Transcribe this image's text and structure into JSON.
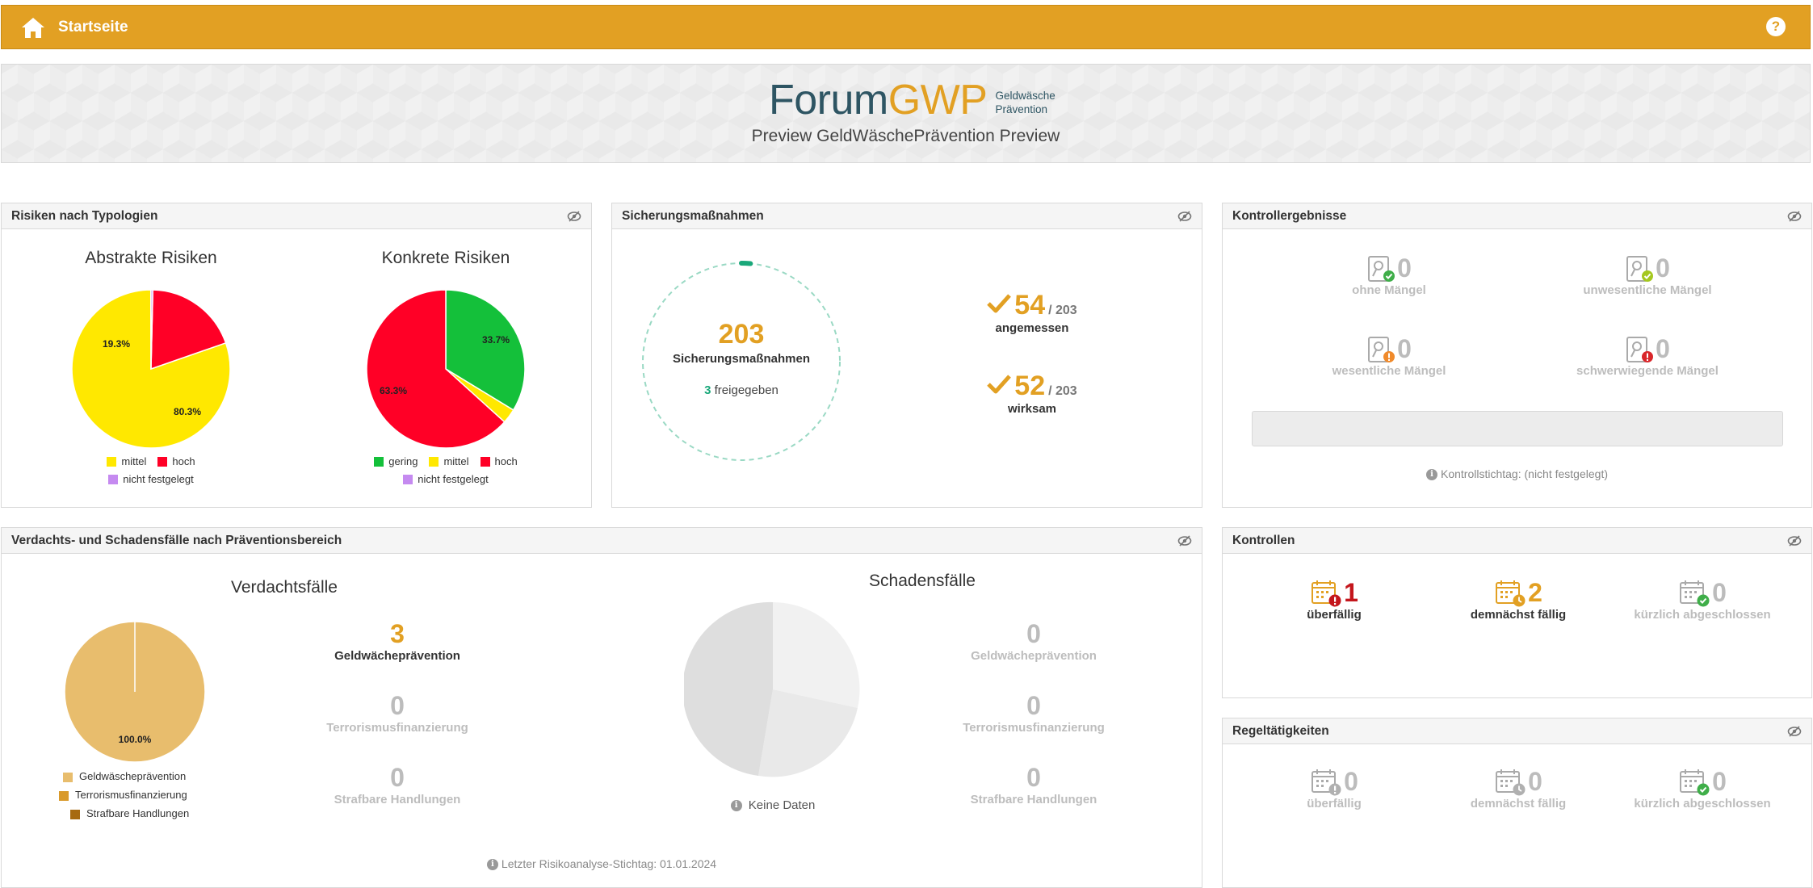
{
  "topbar": {
    "title": "Startseite",
    "help": "?"
  },
  "banner": {
    "logo_forum": "Forum",
    "logo_gwp": "GWP",
    "logo_sub_1": "Geldwäsche",
    "logo_sub_2": "Prävention",
    "subtitle": "Preview GeldWäschePrävention Preview"
  },
  "risiken": {
    "header": "Risiken nach Typologien",
    "abstrakt": {
      "title": "Abstrakte Risiken",
      "label_big": "80.3%",
      "label_small": "19.3%",
      "legend": [
        "mittel",
        "hoch",
        "nicht festgelegt"
      ]
    },
    "konkret": {
      "title": "Konkrete Risiken",
      "label_green": "33.7%",
      "label_red": "63.3%",
      "legend": [
        "gering",
        "mittel",
        "hoch",
        "nicht festgelegt"
      ]
    }
  },
  "sicherung": {
    "header": "Sicherungsmaßnahmen",
    "total": "203",
    "total_label": "Sicherungsmaßnahmen",
    "freigegeben_num": "3",
    "freigegeben_label": "freigegeben",
    "angemessen_num": "54",
    "angemessen_of": "/ 203",
    "angemessen_label": "angemessen",
    "wirksam_num": "52",
    "wirksam_of": "/ 203",
    "wirksam_label": "wirksam"
  },
  "kontroll": {
    "header": "Kontrollergebnisse",
    "items": [
      {
        "num": "0",
        "label": "ohne Mängel"
      },
      {
        "num": "0",
        "label": "unwesentliche Mängel"
      },
      {
        "num": "0",
        "label": "wesentliche Mängel"
      },
      {
        "num": "0",
        "label": "schwerwiegende Mängel"
      }
    ],
    "stichtag": "Kontrollstichtag: (nicht festgelegt)"
  },
  "faelle": {
    "header": "Verdachts- und Schadensfälle nach Präventionsbereich",
    "verdacht": {
      "title": "Verdachtsfälle",
      "pie_label": "100.0%",
      "legend": [
        "Geldwäscheprävention",
        "Terrorismusfinanzierung",
        "Strafbare Handlungen"
      ],
      "stats": [
        {
          "num": "3",
          "label": "Geldwächeprävention"
        },
        {
          "num": "0",
          "label": "Terrorismusfinanzierung"
        },
        {
          "num": "0",
          "label": "Strafbare Handlungen"
        }
      ]
    },
    "schaden": {
      "title": "Schadensfälle",
      "keine": "Keine Daten",
      "stats": [
        {
          "num": "0",
          "label": "Geldwächeprävention"
        },
        {
          "num": "0",
          "label": "Terrorismusfinanzierung"
        },
        {
          "num": "0",
          "label": "Strafbare Handlungen"
        }
      ]
    },
    "footer": "Letzter Risikoanalyse-Stichtag: 01.01.2024"
  },
  "kontrollen": {
    "header": "Kontrollen",
    "items": [
      {
        "num": "1",
        "label": "überfällig"
      },
      {
        "num": "2",
        "label": "demnächst fällig"
      },
      {
        "num": "0",
        "label": "kürzlich abgeschlossen"
      }
    ]
  },
  "regel": {
    "header": "Regeltätigkeiten",
    "items": [
      {
        "num": "0",
        "label": "überfällig"
      },
      {
        "num": "0",
        "label": "demnächst fällig"
      },
      {
        "num": "0",
        "label": "kürzlich abgeschlossen"
      }
    ]
  },
  "colors": {
    "accent": "#e2a023",
    "yellow": "#ffe800",
    "red": "#ff0026",
    "green": "#14c03a",
    "purple": "#c58af0",
    "gwp_tan": "#e8bd6d",
    "tf_orange": "#d99a2b",
    "sh_brown": "#a76a10"
  },
  "chart_data": [
    {
      "type": "pie",
      "title": "Abstrakte Risiken",
      "categories": [
        "mittel",
        "hoch",
        "nicht festgelegt"
      ],
      "values": [
        80.3,
        19.3,
        0.4
      ]
    },
    {
      "type": "pie",
      "title": "Konkrete Risiken",
      "categories": [
        "gering",
        "mittel",
        "hoch",
        "nicht festgelegt"
      ],
      "values": [
        33.7,
        3.0,
        63.3,
        0.0
      ]
    },
    {
      "type": "pie",
      "title": "Verdachtsfälle",
      "categories": [
        "Geldwäscheprävention",
        "Terrorismusfinanzierung",
        "Strafbare Handlungen"
      ],
      "values": [
        100.0,
        0,
        0
      ]
    }
  ]
}
